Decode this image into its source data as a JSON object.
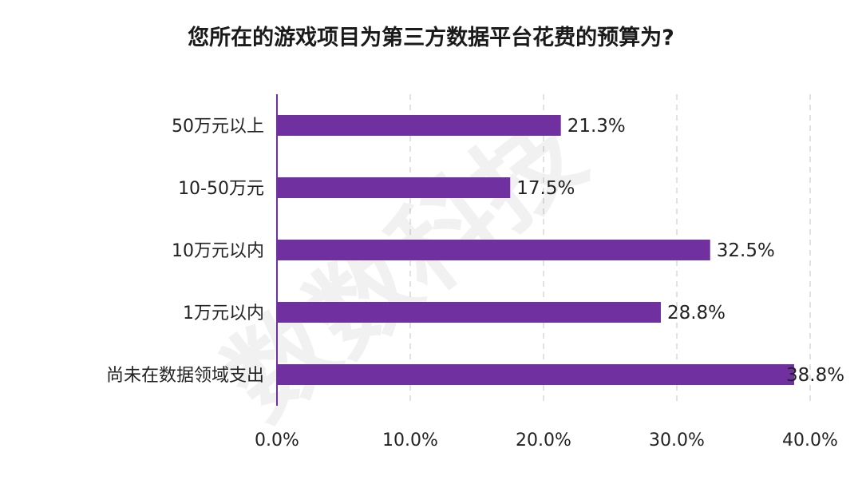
{
  "chart_data": {
    "type": "bar",
    "orientation": "horizontal",
    "title": "您所在的游戏项目为第三方数据平台花费的预算为?",
    "categories": [
      "50万元以上",
      "10-50万元",
      "10万元以内",
      "1万元以内",
      "尚未在数据领域支出"
    ],
    "values": [
      21.3,
      17.5,
      32.5,
      28.8,
      38.8
    ],
    "value_labels": [
      "21.3%",
      "17.5%",
      "32.5%",
      "28.8%",
      "38.8%"
    ],
    "xlim": [
      0,
      40
    ],
    "xticks": [
      0,
      10,
      20,
      30,
      40
    ],
    "xtick_labels": [
      "0.0%",
      "10.0%",
      "20.0%",
      "30.0%",
      "40.0%"
    ],
    "xlabel": "",
    "ylabel": "",
    "grid": "vertical-dashed",
    "legend": "none",
    "bar_color": "#7030a0",
    "axis_color": "#7030a0"
  },
  "watermark": "数数科技"
}
